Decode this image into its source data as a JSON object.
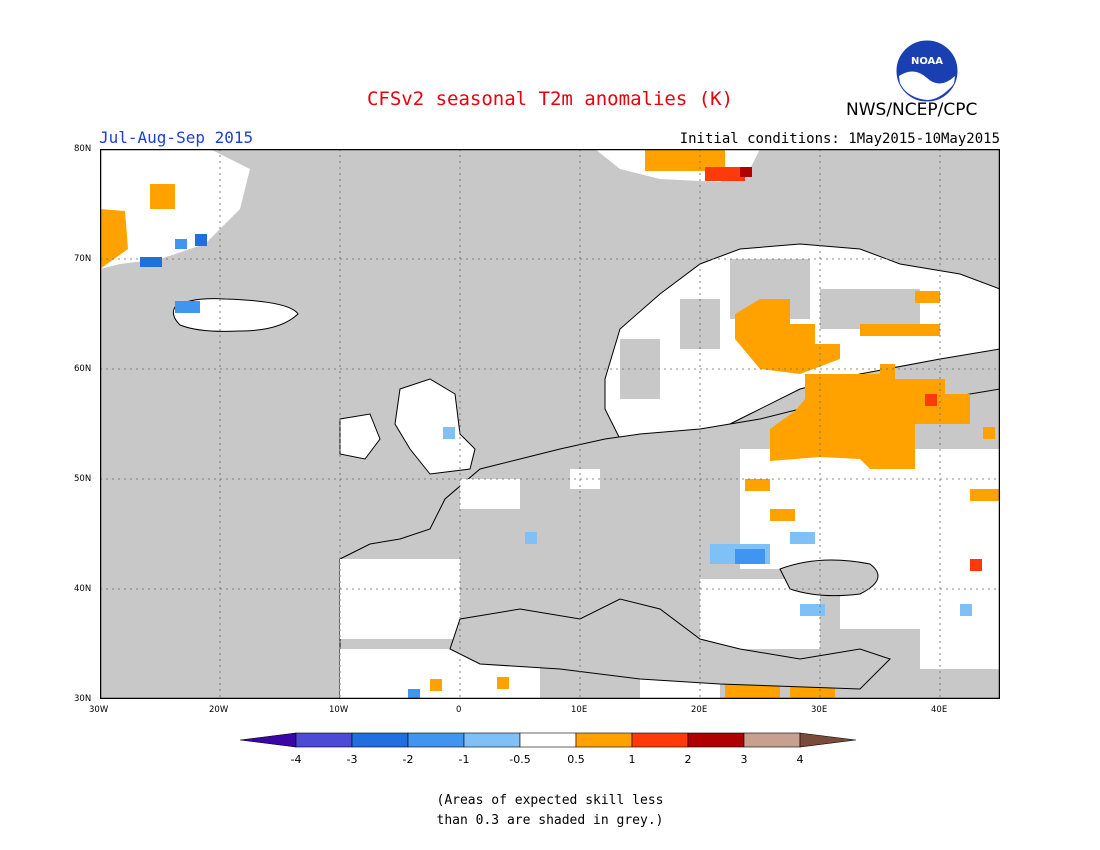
{
  "header": {
    "title": "CFSv2 seasonal T2m anomalies (K)",
    "period": "Jul-Aug-Sep 2015",
    "agency": "NWS/NCEP/CPC",
    "initial_conditions": "Initial conditions: 1May2015-10May2015",
    "logo_text": "NOAA"
  },
  "colors": {
    "title": "#e8000b",
    "period": "#1a3fd6",
    "grey_mask": "#c8c8c8",
    "land_white": "#ffffff",
    "ocean": "#c8c8c8"
  },
  "map": {
    "lat_labels": [
      "80N",
      "70N",
      "60N",
      "50N",
      "40N",
      "30N"
    ],
    "lon_labels": [
      "30W",
      "20W",
      "10W",
      "0",
      "10E",
      "20E",
      "30E",
      "40E"
    ],
    "anomaly_regions": [
      {
        "name": "western-russia-warm",
        "anomaly": "0.5 to 1"
      },
      {
        "name": "finland-warm",
        "anomaly": "0.5 to 1"
      },
      {
        "name": "svalbard-warm",
        "anomaly": "1 to 3"
      },
      {
        "name": "east-greenland-warm",
        "anomaly": "0.5 to 1"
      },
      {
        "name": "balkans-cool",
        "anomaly": "-1 to -0.5"
      },
      {
        "name": "iceland-cool",
        "anomaly": "-2 to -1"
      },
      {
        "name": "turkey-cool",
        "anomaly": "-1 to -0.5"
      }
    ]
  },
  "legend": {
    "labels": [
      "-4",
      "-3",
      "-2",
      "-1",
      "-0.5",
      "0.5",
      "1",
      "2",
      "3",
      "4"
    ],
    "colors": [
      "#3a06a8",
      "#4c4ad6",
      "#1f6fe0",
      "#3f95f0",
      "#7fc0f7",
      "#ffffff",
      "#ffa200",
      "#ff3a0a",
      "#b00000",
      "#c8a090",
      "#7a4a3a"
    ]
  },
  "note": {
    "line1": "(Areas of expected skill less",
    "line2": "than 0.3 are shaded in grey.)"
  }
}
